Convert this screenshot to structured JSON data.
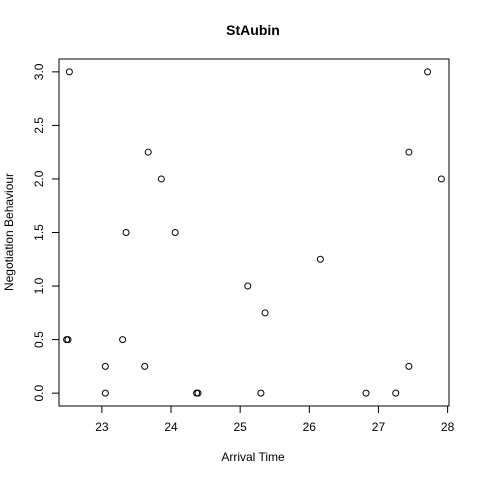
{
  "chart_data": {
    "type": "scatter",
    "title": "StAubin",
    "xlabel": "Arrival Time",
    "ylabel": "Negotiation Behaviour",
    "xlim": [
      22.38,
      28.02
    ],
    "ylim": [
      -0.12,
      3.12
    ],
    "xticks": [
      23,
      24,
      25,
      26,
      27,
      28
    ],
    "yticks": [
      0.0,
      0.5,
      1.0,
      1.5,
      2.0,
      2.5,
      3.0
    ],
    "xtick_labels": [
      "23",
      "24",
      "25",
      "26",
      "27",
      "28"
    ],
    "ytick_labels": [
      "0.0",
      "0.5",
      "1.0",
      "1.5",
      "2.0",
      "2.5",
      "3.0"
    ],
    "grid": false,
    "points": [
      {
        "x": 22.53,
        "y": 3.0
      },
      {
        "x": 22.49,
        "y": 0.5
      },
      {
        "x": 22.51,
        "y": 0.5
      },
      {
        "x": 23.05,
        "y": 0.25
      },
      {
        "x": 23.05,
        "y": 0.0
      },
      {
        "x": 23.3,
        "y": 0.5
      },
      {
        "x": 23.35,
        "y": 1.5
      },
      {
        "x": 23.62,
        "y": 0.25
      },
      {
        "x": 23.67,
        "y": 2.25
      },
      {
        "x": 23.86,
        "y": 2.0
      },
      {
        "x": 24.06,
        "y": 1.5
      },
      {
        "x": 24.37,
        "y": 0.0
      },
      {
        "x": 24.39,
        "y": 0.0
      },
      {
        "x": 25.11,
        "y": 1.0
      },
      {
        "x": 25.3,
        "y": 0.0
      },
      {
        "x": 25.36,
        "y": 0.75
      },
      {
        "x": 26.16,
        "y": 1.25
      },
      {
        "x": 26.82,
        "y": 0.0
      },
      {
        "x": 27.25,
        "y": 0.0
      },
      {
        "x": 27.44,
        "y": 2.25
      },
      {
        "x": 27.44,
        "y": 0.25
      },
      {
        "x": 27.71,
        "y": 3.0
      },
      {
        "x": 27.91,
        "y": 2.0
      }
    ]
  }
}
